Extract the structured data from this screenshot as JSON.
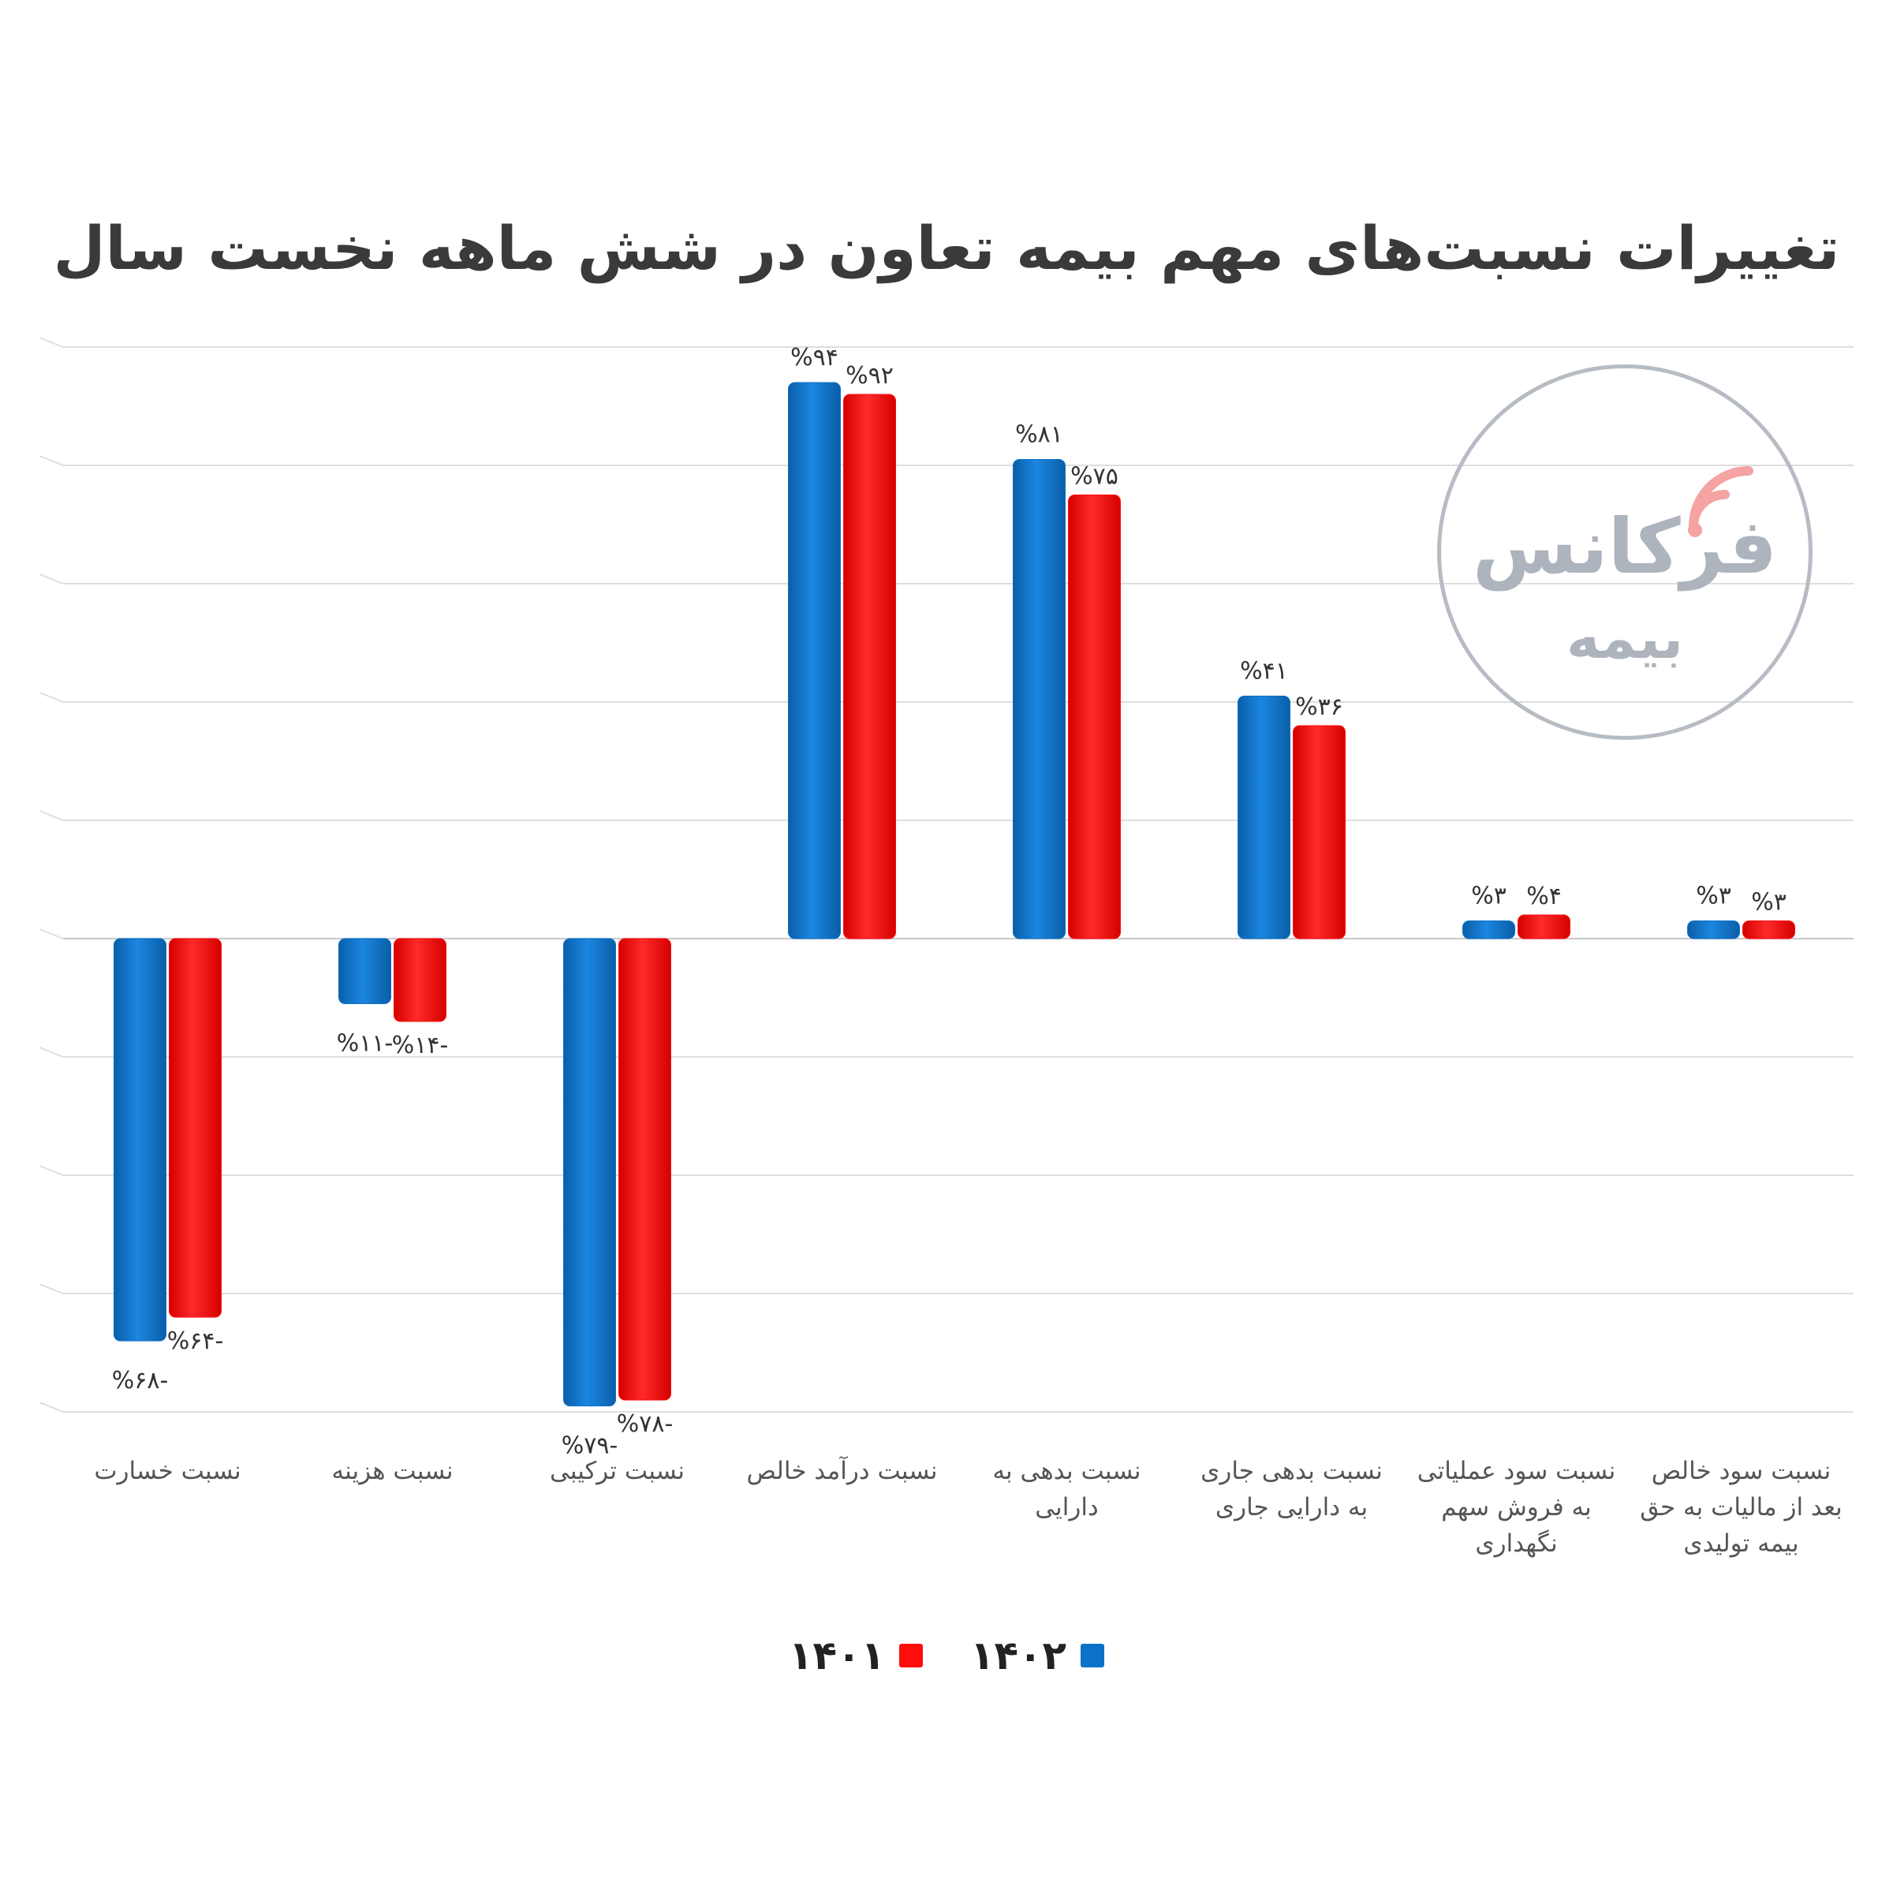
{
  "chart_data": {
    "type": "bar",
    "title": "تغییرات نسبت‌های مهم بیمه تعاون در شش ماهه نخست سال",
    "categories": [
      "نسبت خسارت",
      "نسبت هزینه",
      "نسبت ترکیبی",
      "نسبت درآمد خالص",
      "نسبت بدهی به دارایی",
      "نسبت بدهی جاری به دارایی جاری",
      "نسبت سود عملیاتی به فروش سهم نگهداری",
      "نسبت سود خالص بعد از مالیات به حق بیمه تولیدی"
    ],
    "category_lines": [
      [
        "نسبت خسارت"
      ],
      [
        "نسبت هزینه"
      ],
      [
        "نسبت ترکیبی"
      ],
      [
        "نسبت درآمد خالص"
      ],
      [
        "نسبت بدهی به",
        "دارایی"
      ],
      [
        "نسبت بدهی جاری",
        "به دارایی جاری"
      ],
      [
        "نسبت سود عملیاتی",
        "به فروش سهم",
        "نگهداری"
      ],
      [
        "نسبت سود خالص",
        "بعد از مالیات به حق",
        "بیمه تولیدی"
      ]
    ],
    "series": [
      {
        "name": "۱۴۰۲",
        "color": "#0b72c9",
        "values": [
          -68,
          -11,
          -79,
          94,
          81,
          41,
          3,
          3
        ],
        "labels": [
          "%۶۸-",
          "%۱۱-",
          "%۷۹-",
          "%۹۴",
          "%۸۱",
          "%۴۱",
          "%۳",
          "%۳"
        ]
      },
      {
        "name": "۱۴۰۱",
        "color": "#ff0d0d",
        "values": [
          -64,
          -14,
          -78,
          92,
          75,
          36,
          4,
          3
        ],
        "labels": [
          "%۶۴-",
          "%۱۴-",
          "%۷۸-",
          "%۹۲",
          "%۷۵",
          "%۳۶",
          "%۴",
          "%۳"
        ]
      }
    ],
    "ylim": [
      -80,
      100
    ],
    "grid": true,
    "legend_position": "bottom-center"
  },
  "watermark": {
    "name": "فرکانس",
    "sub": "بیمه"
  }
}
